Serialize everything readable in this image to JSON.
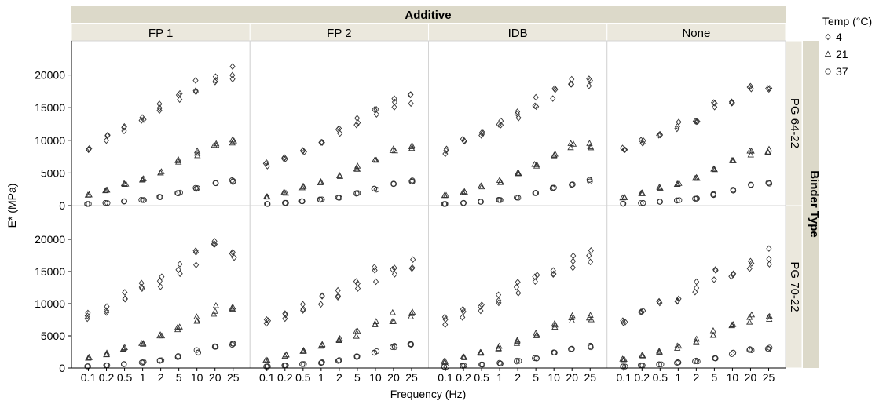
{
  "chart_data": {
    "type": "scatter",
    "title": "",
    "column_facet_title": "Additive",
    "row_facet_title": "Binder Type",
    "columns": [
      "FP 1",
      "FP 2",
      "IDB",
      "None"
    ],
    "rows": [
      "PG 64-22",
      "PG 70-22"
    ],
    "xlabel": "Frequency (Hz)",
    "ylabel": "E* (MPa)",
    "x_categories": [
      "0.1",
      "0.2",
      "0.5",
      "1",
      "2",
      "5",
      "10",
      "20",
      "25"
    ],
    "ylim": [
      0,
      25000
    ],
    "y_ticks": [
      0,
      5000,
      10000,
      15000,
      20000
    ],
    "legend": {
      "title": "Temp (°C)",
      "placement": "top-right",
      "entries": [
        {
          "label": "4",
          "marker": "diamond"
        },
        {
          "label": "21",
          "marker": "triangle"
        },
        {
          "label": "37",
          "marker": "circle"
        }
      ]
    },
    "grid": false,
    "panels": [
      {
        "column": "FP 1",
        "row": "PG 64-22",
        "series": [
          {
            "temp": "4",
            "values": [
              9000,
              10300,
              12000,
              13500,
              15000,
              17000,
              18300,
              19700,
              20300
            ]
          },
          {
            "temp": "21",
            "values": [
              1600,
              2300,
              3300,
              4100,
              5200,
              6800,
              8000,
              9300,
              9800
            ]
          },
          {
            "temp": "37",
            "values": [
              250,
              400,
              650,
              850,
              1300,
              1900,
              2600,
              3300,
              3700
            ]
          }
        ]
      },
      {
        "column": "FP 2",
        "row": "PG 64-22",
        "series": [
          {
            "temp": "4",
            "values": [
              6300,
              7200,
              8600,
              9800,
              11300,
              12800,
              14300,
              15700,
              16200
            ]
          },
          {
            "temp": "21",
            "values": [
              1300,
              2000,
              2800,
              3600,
              4600,
              5800,
              7100,
              8300,
              8800
            ]
          },
          {
            "temp": "37",
            "values": [
              250,
              400,
              650,
              900,
              1200,
              1900,
              2500,
              3300,
              3700
            ]
          }
        ]
      },
      {
        "column": "IDB",
        "row": "PG 64-22",
        "series": [
          {
            "temp": "4",
            "values": [
              8300,
              9800,
              11300,
              12600,
              14000,
              15900,
              17200,
              18600,
              18900
            ]
          },
          {
            "temp": "21",
            "values": [
              1500,
              2100,
              3000,
              3700,
              4800,
              6200,
              7600,
              9100,
              9200
            ]
          },
          {
            "temp": "37",
            "values": [
              250,
              400,
              600,
              850,
              1200,
              1900,
              2700,
              3300,
              3800
            ]
          }
        ]
      },
      {
        "column": "None",
        "row": "PG 64-22",
        "series": [
          {
            "temp": "4",
            "values": [
              8500,
              9600,
              11000,
              12300,
              13500,
              15200,
              16500,
              17800,
              18300
            ]
          },
          {
            "temp": "21",
            "values": [
              1200,
              1900,
              2700,
              3300,
              4200,
              5700,
              6800,
              8000,
              8400
            ]
          },
          {
            "temp": "37",
            "values": [
              300,
              400,
              600,
              800,
              1100,
              1700,
              2400,
              3100,
              3500
            ]
          }
        ]
      },
      {
        "column": "FP 1",
        "row": "PG 70-22",
        "series": [
          {
            "temp": "4",
            "values": [
              8300,
              9300,
              10900,
              12300,
              13600,
              15500,
              17000,
              18300,
              18800
            ]
          },
          {
            "temp": "21",
            "values": [
              1600,
              2200,
              3100,
              3900,
              4900,
              6300,
              7500,
              8900,
              9200
            ]
          },
          {
            "temp": "37",
            "values": [
              250,
              400,
              650,
              900,
              1200,
              1800,
              2600,
              3300,
              3600
            ]
          }
        ]
      },
      {
        "column": "FP 2",
        "row": "PG 70-22",
        "series": [
          {
            "temp": "4",
            "values": [
              7000,
              8000,
              9100,
              10400,
              11500,
              13100,
              14500,
              15900,
              16800
            ]
          },
          {
            "temp": "21",
            "values": [
              1200,
              1900,
              2700,
              3400,
              4300,
              5400,
              6700,
              7900,
              8300
            ]
          },
          {
            "temp": "37",
            "values": [
              250,
              400,
              650,
              850,
              1200,
              1800,
              2600,
              3300,
              3800
            ]
          }
        ]
      },
      {
        "column": "IDB",
        "row": "PG 70-22",
        "series": [
          {
            "temp": "4",
            "values": [
              7400,
              8400,
              9700,
              11000,
              12300,
              14000,
              15300,
              16700,
              17200
            ]
          },
          {
            "temp": "21",
            "values": [
              1000,
              1700,
              2400,
              3200,
              4100,
              5300,
              6500,
              7700,
              8000
            ]
          },
          {
            "temp": "37",
            "values": [
              200,
              350,
              550,
              750,
              1100,
              1600,
              2300,
              2900,
              3300
            ]
          }
        ]
      },
      {
        "column": "None",
        "row": "PG 70-22",
        "series": [
          {
            "temp": "4",
            "values": [
              7600,
              8700,
              10000,
              11200,
              12600,
              14200,
              15500,
              16800,
              17400
            ]
          },
          {
            "temp": "21",
            "values": [
              1300,
              1900,
              2600,
              3300,
              4200,
              5500,
              6700,
              7800,
              8200
            ]
          },
          {
            "temp": "37",
            "values": [
              250,
              400,
              600,
              850,
              1100,
              1600,
              2200,
              2800,
              3100
            ]
          }
        ]
      }
    ]
  }
}
